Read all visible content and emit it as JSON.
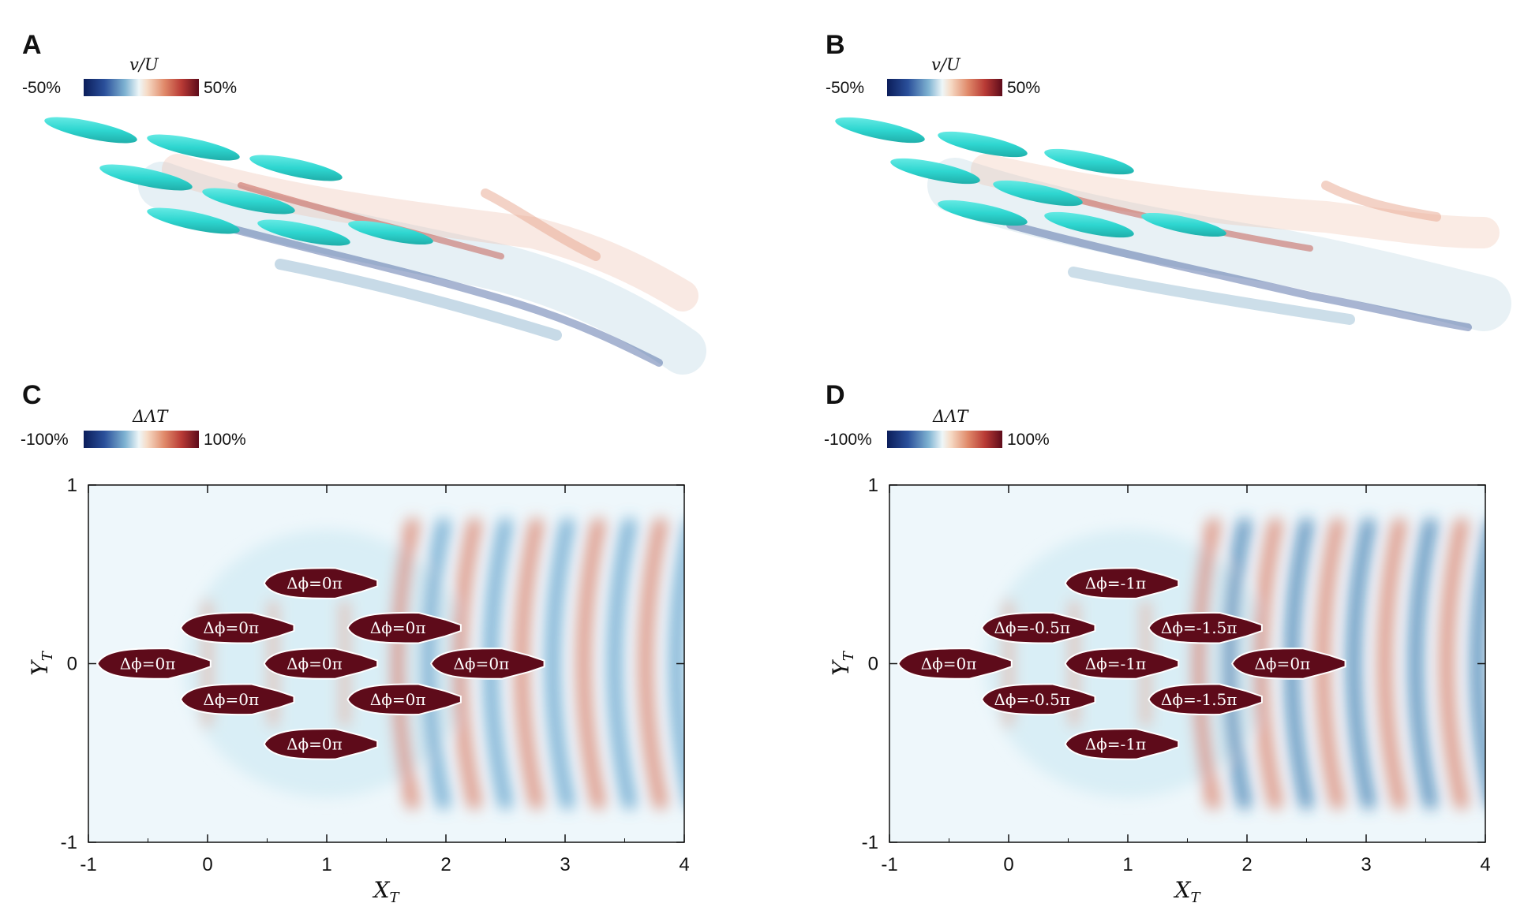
{
  "panels": [
    {
      "letter": "A",
      "colorbar": {
        "label": "v/U",
        "min": "-50%",
        "max": "50%"
      }
    },
    {
      "letter": "B",
      "colorbar": {
        "label": "v/U",
        "min": "-50%",
        "max": "50%"
      }
    },
    {
      "letter": "C",
      "colorbar": {
        "label": "ΔΛT",
        "min": "-100%",
        "max": "100%"
      }
    },
    {
      "letter": "D",
      "colorbar": {
        "label": "ΔΛT",
        "min": "-100%",
        "max": "100%"
      }
    }
  ],
  "chart_data": [
    {
      "type": "heatmap",
      "panel": "C",
      "xlabel": "XT",
      "ylabel": "YT",
      "xlim": [
        -1,
        4
      ],
      "ylim": [
        -1,
        1
      ],
      "xticks": [
        "-1",
        "0",
        "1",
        "2",
        "3",
        "4"
      ],
      "yticks": [
        "1",
        "0",
        "-1"
      ],
      "fish": [
        {
          "x": 0.95,
          "y": 0.45,
          "label": "Δϕ=0π"
        },
        {
          "x": 0.25,
          "y": 0.2,
          "label": "Δϕ=0π"
        },
        {
          "x": 1.65,
          "y": 0.2,
          "label": "Δϕ=0π"
        },
        {
          "x": -0.45,
          "y": 0.0,
          "label": "Δϕ=0π"
        },
        {
          "x": 0.95,
          "y": 0.0,
          "label": "Δϕ=0π"
        },
        {
          "x": 2.35,
          "y": 0.0,
          "label": "Δϕ=0π"
        },
        {
          "x": 0.25,
          "y": -0.2,
          "label": "Δϕ=0π"
        },
        {
          "x": 1.65,
          "y": -0.2,
          "label": "Δϕ=0π"
        },
        {
          "x": 0.95,
          "y": -0.45,
          "label": "Δϕ=0π"
        }
      ]
    },
    {
      "type": "heatmap",
      "panel": "D",
      "xlabel": "XT",
      "ylabel": "YT",
      "xlim": [
        -1,
        4
      ],
      "ylim": [
        -1,
        1
      ],
      "xticks": [
        "-1",
        "0",
        "1",
        "2",
        "3",
        "4"
      ],
      "yticks": [
        "1",
        "0",
        "-1"
      ],
      "fish": [
        {
          "x": 0.95,
          "y": 0.45,
          "label": "Δϕ=-1π"
        },
        {
          "x": 0.25,
          "y": 0.2,
          "label": "Δϕ=-0.5π"
        },
        {
          "x": 1.65,
          "y": 0.2,
          "label": "Δϕ=-1.5π"
        },
        {
          "x": -0.45,
          "y": 0.0,
          "label": "Δϕ=0π"
        },
        {
          "x": 0.95,
          "y": 0.0,
          "label": "Δϕ=-1π"
        },
        {
          "x": 2.35,
          "y": 0.0,
          "label": "Δϕ=0π"
        },
        {
          "x": 0.25,
          "y": -0.2,
          "label": "Δϕ=-0.5π"
        },
        {
          "x": 1.65,
          "y": -0.2,
          "label": "Δϕ=-1.5π"
        },
        {
          "x": 0.95,
          "y": -0.45,
          "label": "Δϕ=-1π"
        }
      ]
    }
  ],
  "colors": {
    "fish_body": "#5e0b1a",
    "fish_3d": "#2ed6d0",
    "negative": "#2a6fa8",
    "positive": "#d9735a"
  }
}
